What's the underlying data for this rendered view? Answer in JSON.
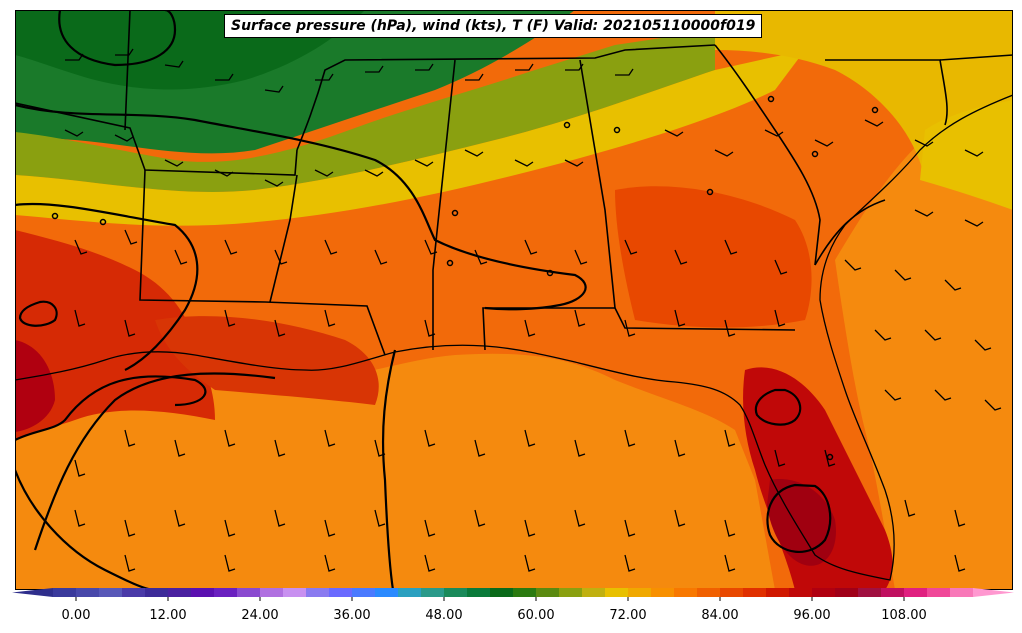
{
  "title": "Surface pressure (hPa), wind (kts), T (F) Valid: 202105110000f019",
  "colorbar": {
    "ticks": [
      "0.00",
      "12.00",
      "24.00",
      "36.00",
      "48.00",
      "60.00",
      "72.00",
      "84.00",
      "96.00",
      "108.00"
    ],
    "tick_values": [
      0,
      12,
      24,
      36,
      48,
      60,
      72,
      84,
      96,
      108
    ],
    "min": -6,
    "max": 120,
    "step": 3,
    "colors": [
      "#2e2e8c",
      "#3a3a9c",
      "#4848aa",
      "#5858b8",
      "#4a3aa8",
      "#3c2a98",
      "#4a20a0",
      "#5a10b0",
      "#6a20c0",
      "#8a4ad0",
      "#b070e0",
      "#c890f0",
      "#8a7af0",
      "#6a6aff",
      "#4a7aff",
      "#2a8aff",
      "#2aa0c0",
      "#2a9a8a",
      "#1a8a5a",
      "#0a7a3a",
      "#0a6a1a",
      "#2a7a10",
      "#5a8a10",
      "#8aa010",
      "#c0b010",
      "#e8c000",
      "#f0a800",
      "#f89000",
      "#f87800",
      "#f06000",
      "#e84800",
      "#e03000",
      "#d01800",
      "#c00808",
      "#b00010",
      "#a00018",
      "#a01040",
      "#c01060",
      "#e02080",
      "#f04898",
      "#f878b8",
      "#ff98d0"
    ]
  },
  "map": {
    "background_color": "#f07a10",
    "projection": "lambert-conformal",
    "region": "Southeastern United States and Gulf of Mexico",
    "features": [
      "state-borders",
      "coastlines",
      "isobars",
      "wind-barbs",
      "temperature-fill"
    ]
  }
}
